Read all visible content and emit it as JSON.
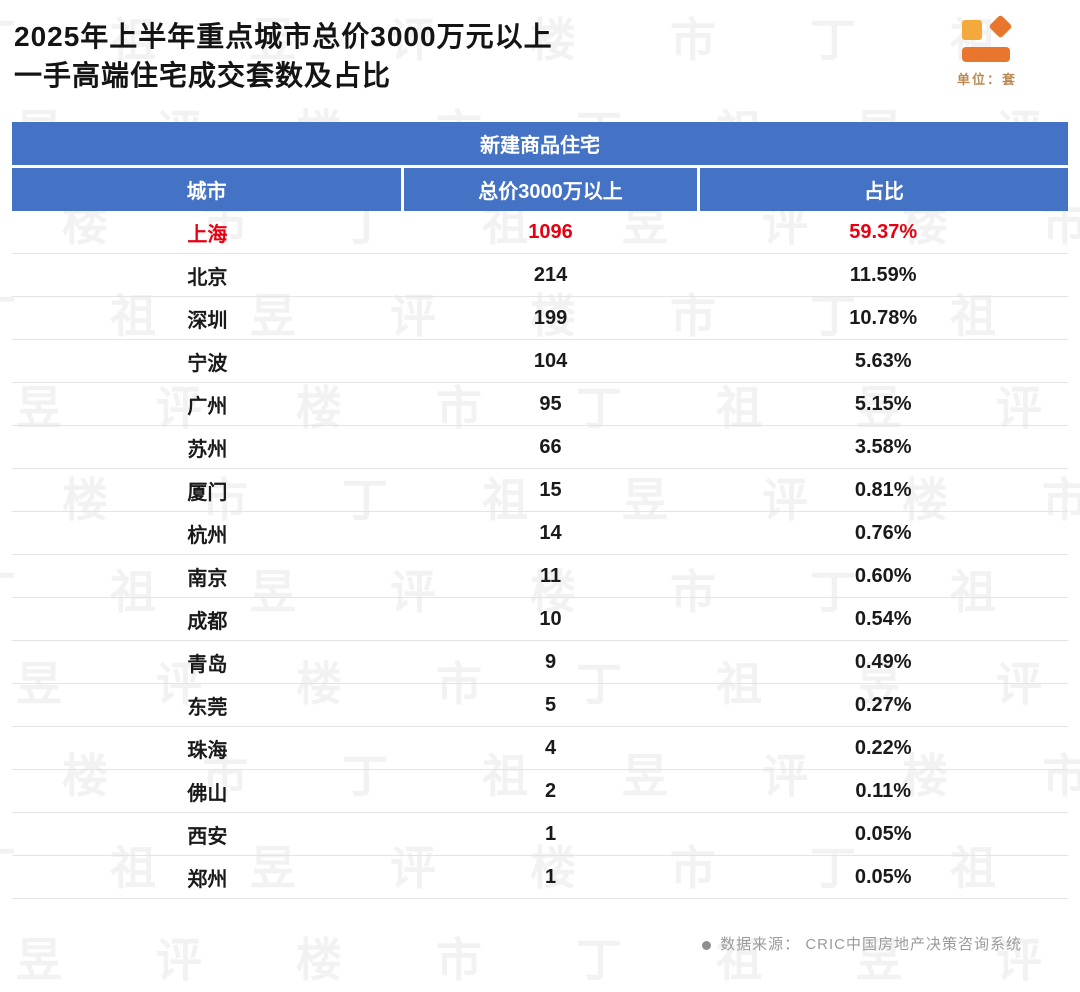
{
  "title": {
    "line1": "2025年上半年重点城市总价3000万元以上",
    "line2": "一手高端住宅成交套数及占比"
  },
  "unit_label": "单位：套",
  "watermark_text": "丁祖昱评楼市",
  "table": {
    "group_header": "新建商品住宅",
    "highlight_city": "上海",
    "colors": {
      "header_bg": "#4472c4",
      "header_text": "#ffffff",
      "highlight_text": "#e60012"
    }
  },
  "chart_data": {
    "type": "table",
    "title": "2025年上半年重点城市总价3000万元以上一手高端住宅成交套数及占比",
    "columns": [
      "城市",
      "总价3000万以上",
      "占比"
    ],
    "rows": [
      [
        "上海",
        "1096",
        "59.37%"
      ],
      [
        "北京",
        "214",
        "11.59%"
      ],
      [
        "深圳",
        "199",
        "10.78%"
      ],
      [
        "宁波",
        "104",
        "5.63%"
      ],
      [
        "广州",
        "95",
        "5.15%"
      ],
      [
        "苏州",
        "66",
        "3.58%"
      ],
      [
        "厦门",
        "15",
        "0.81%"
      ],
      [
        "杭州",
        "14",
        "0.76%"
      ],
      [
        "南京",
        "11",
        "0.60%"
      ],
      [
        "成都",
        "10",
        "0.54%"
      ],
      [
        "青岛",
        "9",
        "0.49%"
      ],
      [
        "东莞",
        "5",
        "0.27%"
      ],
      [
        "珠海",
        "4",
        "0.22%"
      ],
      [
        "佛山",
        "2",
        "0.11%"
      ],
      [
        "西安",
        "1",
        "0.05%"
      ],
      [
        "郑州",
        "1",
        "0.05%"
      ]
    ]
  },
  "footer": {
    "source": "数据来源：  CRIC中国房地产决策咨询系统"
  }
}
